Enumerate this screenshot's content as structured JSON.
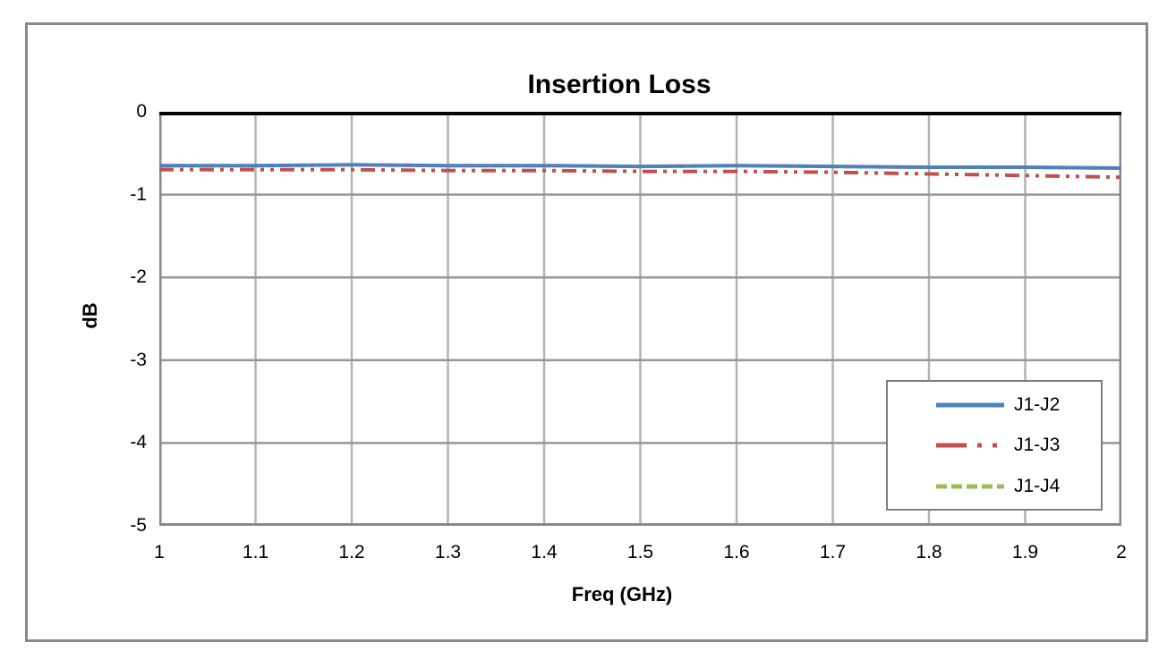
{
  "page": {
    "background": "#ffffff"
  },
  "frame": {
    "border_color": "#898989"
  },
  "chart_data": {
    "type": "line",
    "title": "Insertion Loss",
    "xlabel": "Freq (GHz)",
    "ylabel": "dB",
    "x_range": [
      1,
      2
    ],
    "y_range": [
      -5,
      0
    ],
    "x_ticks": [
      "1",
      "1.1",
      "1.2",
      "1.3",
      "1.4",
      "1.5",
      "1.6",
      "1.7",
      "1.8",
      "1.9",
      "2"
    ],
    "x_tick_values": [
      1,
      1.1,
      1.2,
      1.3,
      1.4,
      1.5,
      1.6,
      1.7,
      1.8,
      1.9,
      2
    ],
    "y_ticks": [
      "0",
      "-1",
      "-2",
      "-3",
      "-4",
      "-5"
    ],
    "y_tick_values": [
      0,
      -1,
      -2,
      -3,
      -4,
      -5
    ],
    "grid": true,
    "legend_position": "inside-right",
    "colors": {
      "axis_zero_line": "#000000",
      "grid_horizontal": "#969696",
      "grid_vertical": "#B3B3B3",
      "plot_border": "#898989",
      "legend_border": "#808080"
    },
    "x": [
      1,
      1.1,
      1.2,
      1.3,
      1.4,
      1.5,
      1.6,
      1.7,
      1.8,
      1.9,
      2
    ],
    "series": [
      {
        "name": "J1-J2",
        "color": "#4F81BD",
        "style": "solid",
        "values": [
          -0.65,
          -0.65,
          -0.64,
          -0.65,
          -0.65,
          -0.66,
          -0.65,
          -0.66,
          -0.67,
          -0.67,
          -0.68
        ]
      },
      {
        "name": "J1-J3",
        "color": "#C0504D",
        "style": "dash-dot-dot",
        "values": [
          -0.7,
          -0.7,
          -0.7,
          -0.71,
          -0.71,
          -0.72,
          -0.72,
          -0.73,
          -0.75,
          -0.77,
          -0.79
        ]
      },
      {
        "name": "J1-J4",
        "color": "#9BBB59",
        "style": "dashed",
        "values": [
          -0.65,
          -0.65,
          -0.64,
          -0.65,
          -0.65,
          -0.66,
          -0.65,
          -0.66,
          -0.67,
          -0.67,
          -0.68
        ],
        "note": "overlaps J1-J2 trace, not separately visible on plot"
      }
    ]
  }
}
